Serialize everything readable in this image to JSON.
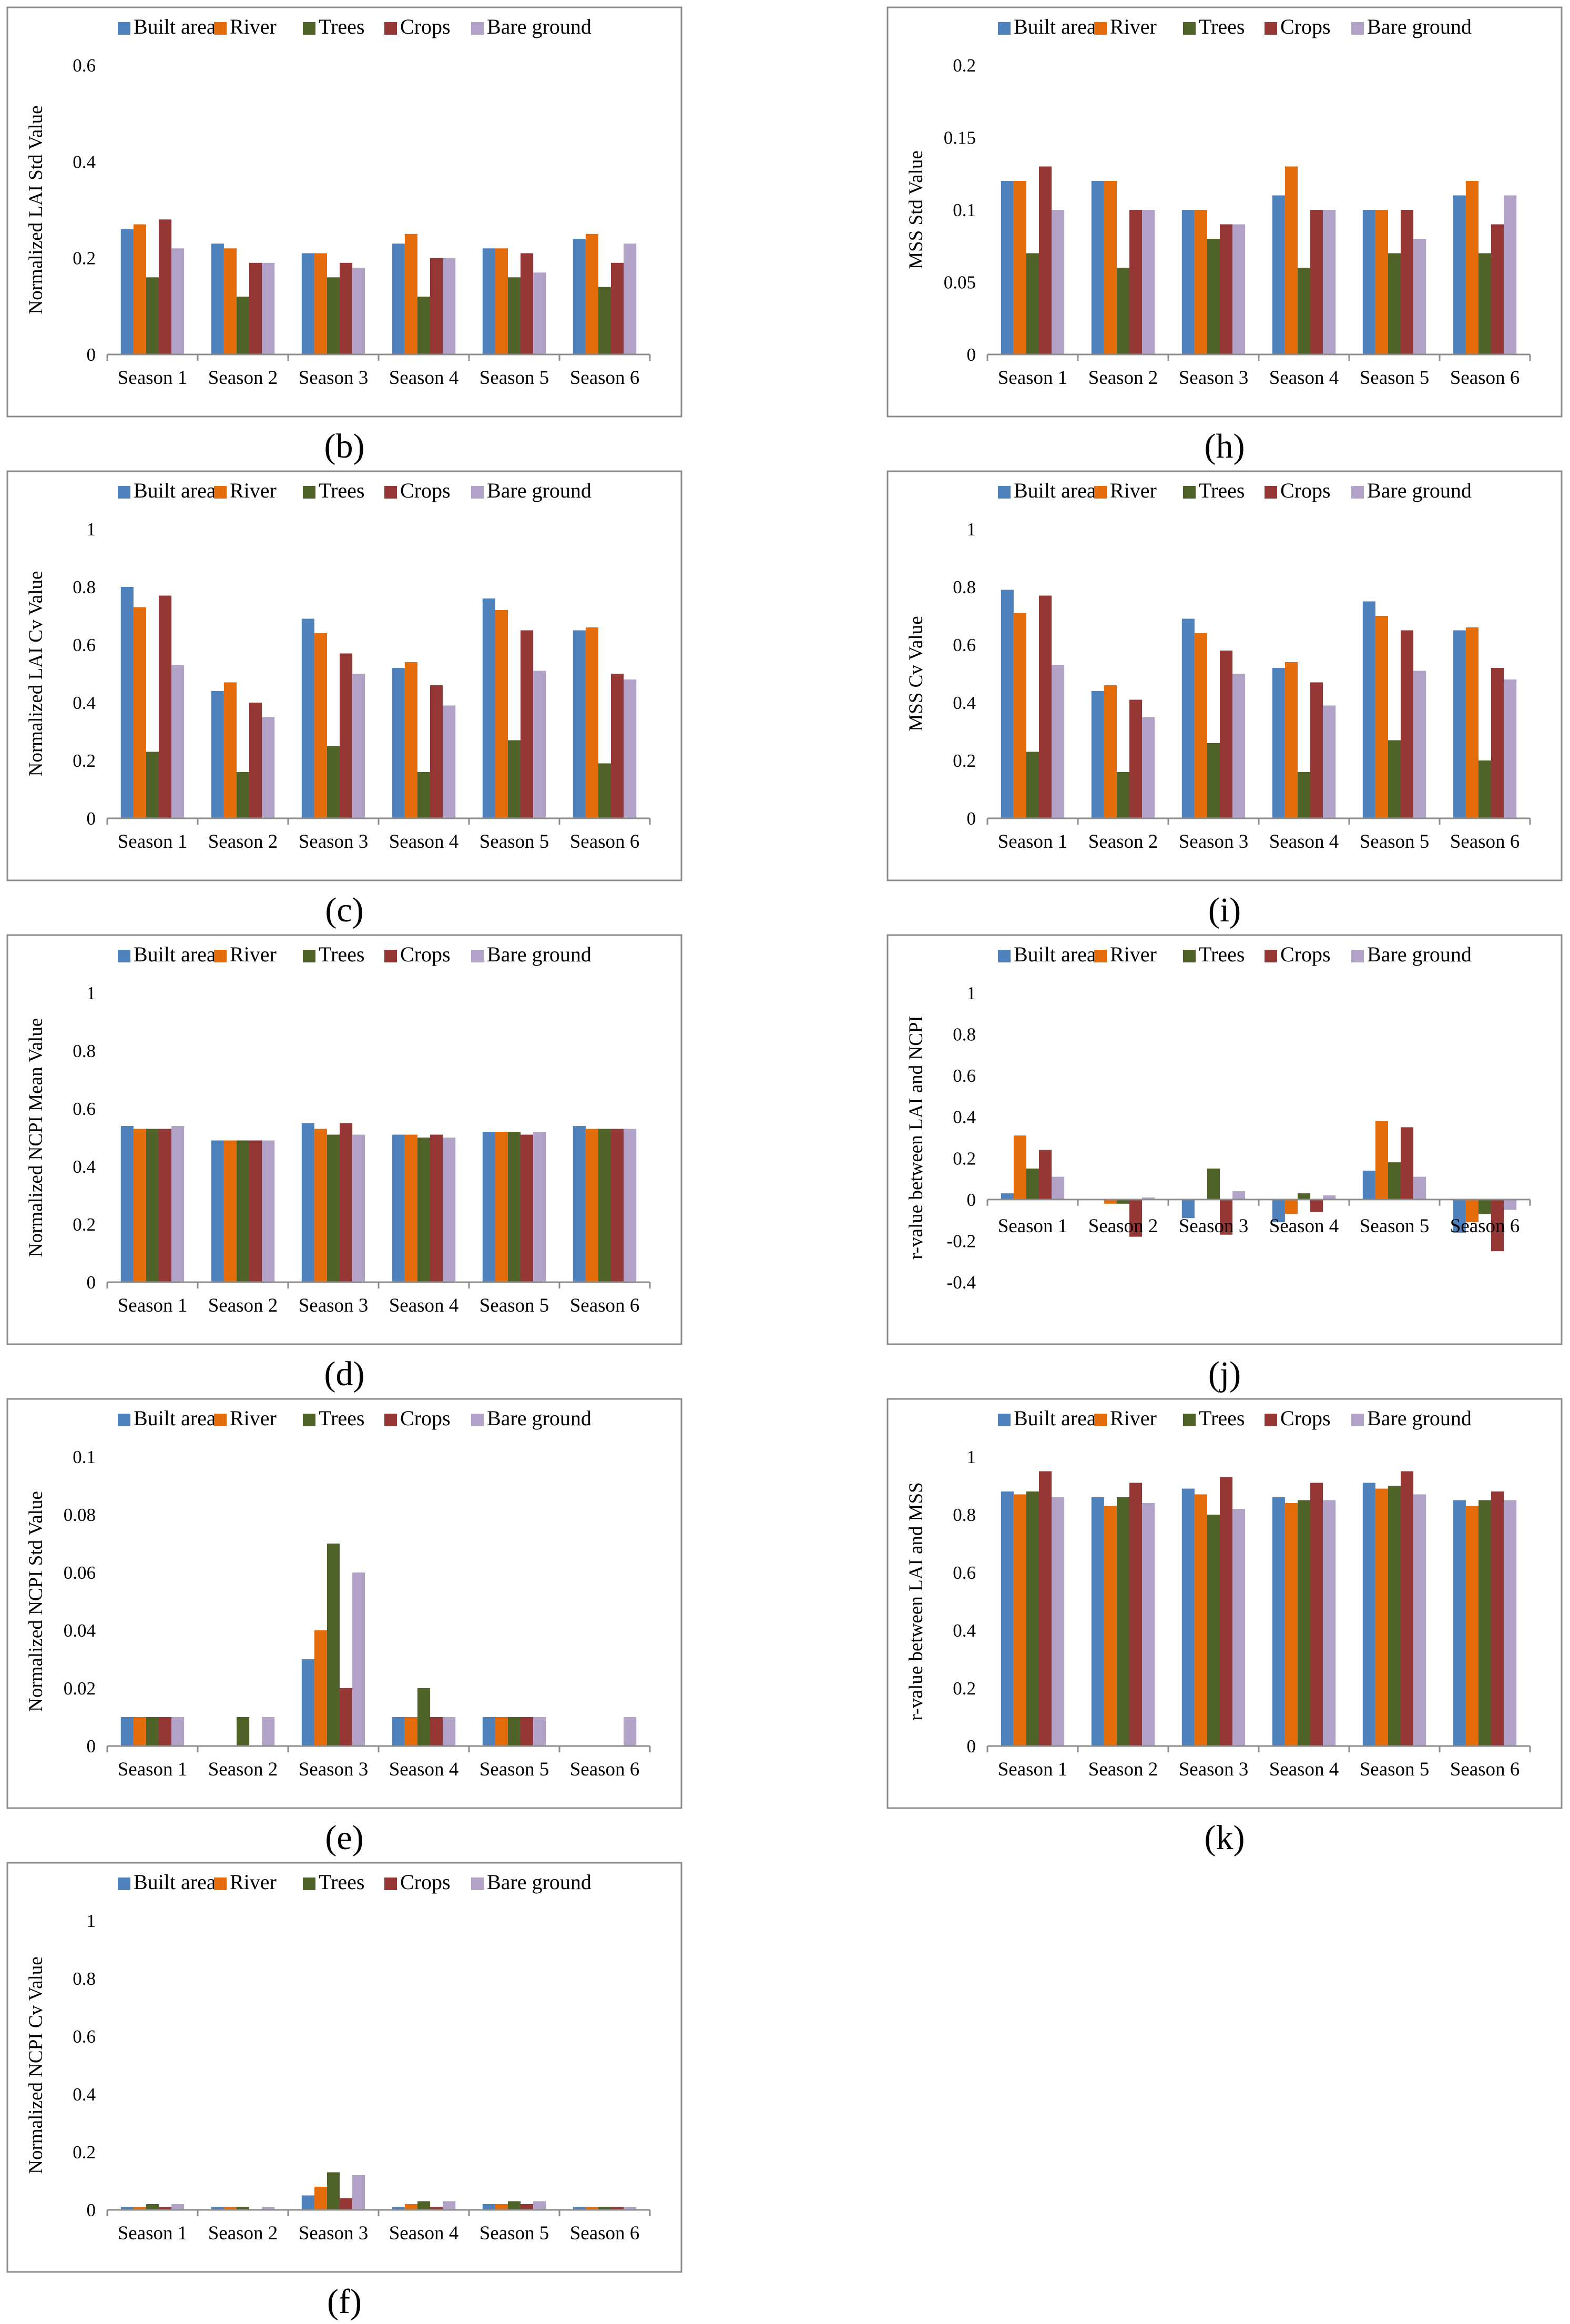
{
  "legend": [
    "Built area",
    "River",
    "Trees",
    "Crops",
    "Bare ground"
  ],
  "colors": [
    "#4f81bd",
    "#e46c0a",
    "#4f6228",
    "#953735",
    "#b3a2c7"
  ],
  "categories": [
    "Season 1",
    "Season 2",
    "Season 3",
    "Season 4",
    "Season 5",
    "Season 6"
  ],
  "chart_data": [
    {
      "type": "bar",
      "id": "b",
      "caption": "(b)",
      "ylabel": "Normalized LAI Std Value",
      "ylim": [
        0,
        0.6
      ],
      "yticks": [
        "0",
        "0.2",
        "0.4",
        "0.6"
      ],
      "ytick_values": [
        0,
        0.2,
        0.4,
        0.6
      ],
      "series": [
        {
          "name": "Built area",
          "values": [
            0.26,
            0.23,
            0.21,
            0.23,
            0.22,
            0.24
          ]
        },
        {
          "name": "River",
          "values": [
            0.27,
            0.22,
            0.21,
            0.25,
            0.22,
            0.25
          ]
        },
        {
          "name": "Trees",
          "values": [
            0.16,
            0.12,
            0.16,
            0.12,
            0.16,
            0.14
          ]
        },
        {
          "name": "Crops",
          "values": [
            0.28,
            0.19,
            0.19,
            0.2,
            0.21,
            0.19
          ]
        },
        {
          "name": "Bare ground",
          "values": [
            0.22,
            0.19,
            0.18,
            0.2,
            0.17,
            0.23
          ]
        }
      ]
    },
    {
      "type": "bar",
      "id": "h",
      "caption": "(h)",
      "ylabel": "MSS Std Value",
      "ylim": [
        0,
        0.2
      ],
      "yticks": [
        "0",
        "0.05",
        "0.1",
        "0.15",
        "0.2"
      ],
      "ytick_values": [
        0,
        0.05,
        0.1,
        0.15,
        0.2
      ],
      "series": [
        {
          "name": "Built area",
          "values": [
            0.12,
            0.12,
            0.1,
            0.11,
            0.1,
            0.11
          ]
        },
        {
          "name": "River",
          "values": [
            0.12,
            0.12,
            0.1,
            0.13,
            0.1,
            0.12
          ]
        },
        {
          "name": "Trees",
          "values": [
            0.07,
            0.06,
            0.08,
            0.06,
            0.07,
            0.07
          ]
        },
        {
          "name": "Crops",
          "values": [
            0.13,
            0.1,
            0.09,
            0.1,
            0.1,
            0.09
          ]
        },
        {
          "name": "Bare ground",
          "values": [
            0.1,
            0.1,
            0.09,
            0.1,
            0.08,
            0.11
          ]
        }
      ]
    },
    {
      "type": "bar",
      "id": "c",
      "caption": "(c)",
      "ylabel": "Normalized LAI Cv Value",
      "ylim": [
        0,
        1
      ],
      "yticks": [
        "0",
        "0.2",
        "0.4",
        "0.6",
        "0.8",
        "1"
      ],
      "ytick_values": [
        0,
        0.2,
        0.4,
        0.6,
        0.8,
        1
      ],
      "series": [
        {
          "name": "Built area",
          "values": [
            0.8,
            0.44,
            0.69,
            0.52,
            0.76,
            0.65
          ]
        },
        {
          "name": "River",
          "values": [
            0.73,
            0.47,
            0.64,
            0.54,
            0.72,
            0.66
          ]
        },
        {
          "name": "Trees",
          "values": [
            0.23,
            0.16,
            0.25,
            0.16,
            0.27,
            0.19
          ]
        },
        {
          "name": "Crops",
          "values": [
            0.77,
            0.4,
            0.57,
            0.46,
            0.65,
            0.5
          ]
        },
        {
          "name": "Bare ground",
          "values": [
            0.53,
            0.35,
            0.5,
            0.39,
            0.51,
            0.48
          ]
        }
      ]
    },
    {
      "type": "bar",
      "id": "i",
      "caption": "(i)",
      "ylabel": "MSS Cv Value",
      "ylim": [
        0,
        1
      ],
      "yticks": [
        "0",
        "0.2",
        "0.4",
        "0.6",
        "0.8",
        "1"
      ],
      "ytick_values": [
        0,
        0.2,
        0.4,
        0.6,
        0.8,
        1
      ],
      "series": [
        {
          "name": "Built area",
          "values": [
            0.79,
            0.44,
            0.69,
            0.52,
            0.75,
            0.65
          ]
        },
        {
          "name": "River",
          "values": [
            0.71,
            0.46,
            0.64,
            0.54,
            0.7,
            0.66
          ]
        },
        {
          "name": "Trees",
          "values": [
            0.23,
            0.16,
            0.26,
            0.16,
            0.27,
            0.2
          ]
        },
        {
          "name": "Crops",
          "values": [
            0.77,
            0.41,
            0.58,
            0.47,
            0.65,
            0.52
          ]
        },
        {
          "name": "Bare ground",
          "values": [
            0.53,
            0.35,
            0.5,
            0.39,
            0.51,
            0.48
          ]
        }
      ]
    },
    {
      "type": "bar",
      "id": "d",
      "caption": "(d)",
      "ylabel": "Normalized NCPI Mean Value",
      "ylim": [
        0,
        1
      ],
      "yticks": [
        "0",
        "0.2",
        "0.4",
        "0.6",
        "0.8",
        "1"
      ],
      "ytick_values": [
        0,
        0.2,
        0.4,
        0.6,
        0.8,
        1
      ],
      "series": [
        {
          "name": "Built area",
          "values": [
            0.54,
            0.49,
            0.55,
            0.51,
            0.52,
            0.54
          ]
        },
        {
          "name": "River",
          "values": [
            0.53,
            0.49,
            0.53,
            0.51,
            0.52,
            0.53
          ]
        },
        {
          "name": "Trees",
          "values": [
            0.53,
            0.49,
            0.51,
            0.5,
            0.52,
            0.53
          ]
        },
        {
          "name": "Crops",
          "values": [
            0.53,
            0.49,
            0.55,
            0.51,
            0.51,
            0.53
          ]
        },
        {
          "name": "Bare ground",
          "values": [
            0.54,
            0.49,
            0.51,
            0.5,
            0.52,
            0.53
          ]
        }
      ]
    },
    {
      "type": "bar",
      "id": "j",
      "caption": "(j)",
      "ylabel": "r-value between LAI and NCPI",
      "ylim": [
        -0.4,
        1
      ],
      "yticks": [
        "-0.4",
        "-0.2",
        "0",
        "0.2",
        "0.4",
        "0.6",
        "0.8",
        "1"
      ],
      "ytick_values": [
        -0.4,
        -0.2,
        0,
        0.2,
        0.4,
        0.6,
        0.8,
        1
      ],
      "series": [
        {
          "name": "Built area",
          "values": [
            0.03,
            0.0,
            -0.09,
            -0.11,
            0.14,
            -0.16
          ]
        },
        {
          "name": "River",
          "values": [
            0.31,
            -0.02,
            0.0,
            -0.07,
            0.38,
            -0.11
          ]
        },
        {
          "name": "Trees",
          "values": [
            0.15,
            -0.02,
            0.15,
            0.03,
            0.18,
            -0.07
          ]
        },
        {
          "name": "Crops",
          "values": [
            0.24,
            -0.18,
            -0.17,
            -0.06,
            0.35,
            -0.25
          ]
        },
        {
          "name": "Bare ground",
          "values": [
            0.11,
            0.01,
            0.04,
            0.02,
            0.11,
            -0.05
          ]
        }
      ]
    },
    {
      "type": "bar",
      "id": "e",
      "caption": "(e)",
      "ylabel": "Normalized NCPI Std Value",
      "ylim": [
        0,
        0.1
      ],
      "yticks": [
        "0",
        "0.02",
        "0.04",
        "0.06",
        "0.08",
        "0.1"
      ],
      "ytick_values": [
        0,
        0.02,
        0.04,
        0.06,
        0.08,
        0.1
      ],
      "series": [
        {
          "name": "Built area",
          "values": [
            0.01,
            0.0,
            0.03,
            0.01,
            0.01,
            0.0
          ]
        },
        {
          "name": "River",
          "values": [
            0.01,
            0.0,
            0.04,
            0.01,
            0.01,
            0.0
          ]
        },
        {
          "name": "Trees",
          "values": [
            0.01,
            0.01,
            0.07,
            0.02,
            0.01,
            0.0
          ]
        },
        {
          "name": "Crops",
          "values": [
            0.01,
            0.0,
            0.02,
            0.01,
            0.01,
            0.0
          ]
        },
        {
          "name": "Bare ground",
          "values": [
            0.01,
            0.01,
            0.06,
            0.01,
            0.01,
            0.01
          ]
        }
      ]
    },
    {
      "type": "bar",
      "id": "k",
      "caption": "(k)",
      "ylabel": "r-value between LAI and MSS",
      "ylim": [
        0,
        1
      ],
      "yticks": [
        "0",
        "0.2",
        "0.4",
        "0.6",
        "0.8",
        "1"
      ],
      "ytick_values": [
        0,
        0.2,
        0.4,
        0.6,
        0.8,
        1
      ],
      "series": [
        {
          "name": "Built area",
          "values": [
            0.88,
            0.86,
            0.89,
            0.86,
            0.91,
            0.85
          ]
        },
        {
          "name": "River",
          "values": [
            0.87,
            0.83,
            0.87,
            0.84,
            0.89,
            0.83
          ]
        },
        {
          "name": "Trees",
          "values": [
            0.88,
            0.86,
            0.8,
            0.85,
            0.9,
            0.85
          ]
        },
        {
          "name": "Crops",
          "values": [
            0.95,
            0.91,
            0.93,
            0.91,
            0.95,
            0.88
          ]
        },
        {
          "name": "Bare ground",
          "values": [
            0.86,
            0.84,
            0.82,
            0.85,
            0.87,
            0.85
          ]
        }
      ]
    },
    {
      "type": "bar",
      "id": "f",
      "caption": "(f)",
      "ylabel": "Normalized NCPI Cv Value",
      "ylim": [
        0,
        1
      ],
      "yticks": [
        "0",
        "0.2",
        "0.4",
        "0.6",
        "0.8",
        "1"
      ],
      "ytick_values": [
        0,
        0.2,
        0.4,
        0.6,
        0.8,
        1
      ],
      "series": [
        {
          "name": "Built area",
          "values": [
            0.01,
            0.01,
            0.05,
            0.01,
            0.02,
            0.01
          ]
        },
        {
          "name": "River",
          "values": [
            0.01,
            0.01,
            0.08,
            0.02,
            0.02,
            0.01
          ]
        },
        {
          "name": "Trees",
          "values": [
            0.02,
            0.01,
            0.13,
            0.03,
            0.03,
            0.01
          ]
        },
        {
          "name": "Crops",
          "values": [
            0.01,
            0.0,
            0.04,
            0.01,
            0.02,
            0.01
          ]
        },
        {
          "name": "Bare ground",
          "values": [
            0.02,
            0.01,
            0.12,
            0.03,
            0.03,
            0.01
          ]
        }
      ]
    }
  ]
}
